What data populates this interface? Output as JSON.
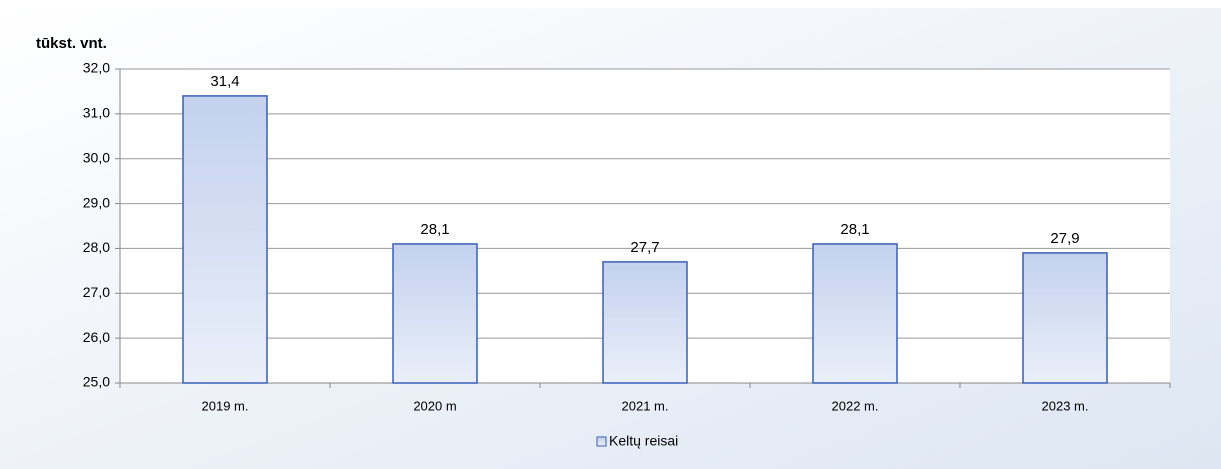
{
  "chart_data": {
    "type": "bar",
    "ylabel": "tūkst. vnt.",
    "categories": [
      "2019 m.",
      "2020 m",
      "2021 m.",
      "2022 m.",
      "2023 m."
    ],
    "series": [
      {
        "name": "Keltų reisai",
        "color": "#3a5fb5",
        "values": [
          31.4,
          28.1,
          27.7,
          28.1,
          27.9
        ],
        "value_labels": [
          "31,4",
          "28,1",
          "27,7",
          "28,1",
          "27,9"
        ]
      }
    ],
    "ylim": [
      25,
      32
    ],
    "yticks": [
      {
        "value": 25,
        "label": "25,0"
      },
      {
        "value": 26,
        "label": "26,0"
      },
      {
        "value": 27,
        "label": "27,0"
      },
      {
        "value": 28,
        "label": "28,0"
      },
      {
        "value": 29,
        "label": "29,0"
      },
      {
        "value": 30,
        "label": "30,0"
      },
      {
        "value": 31,
        "label": "31,0"
      },
      {
        "value": 32,
        "label": "32,0"
      }
    ],
    "grid": true,
    "legend": "bottom"
  }
}
